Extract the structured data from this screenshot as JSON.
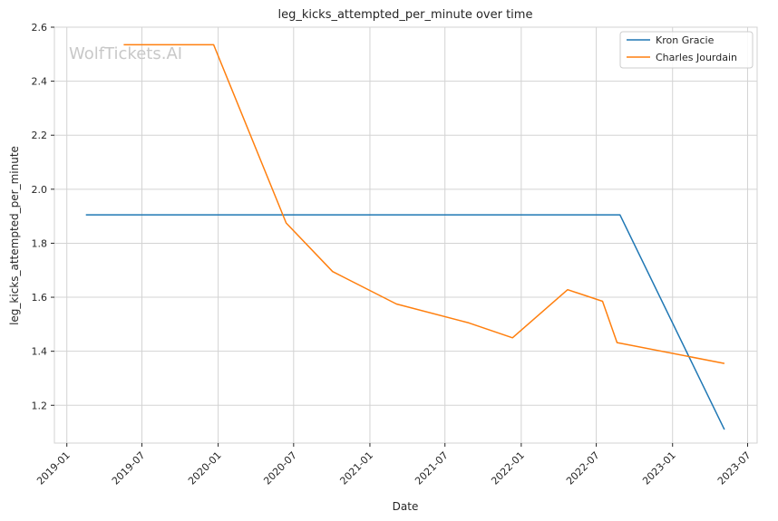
{
  "chart_data": {
    "type": "line",
    "title": "leg_kicks_attempted_per_minute over time",
    "xlabel": "Date",
    "ylabel": "leg_kicks_attempted_per_minute",
    "watermark": "WolfTickets.AI",
    "xlim": [
      "2018-12-02",
      "2023-07-24"
    ],
    "ylim": [
      1.06,
      2.6
    ],
    "x_ticks": [
      "2019-01-01",
      "2019-07-01",
      "2020-01-01",
      "2020-07-01",
      "2021-01-01",
      "2021-07-01",
      "2022-01-01",
      "2022-07-01",
      "2023-01-01",
      "2023-07-01"
    ],
    "x_tick_labels": [
      "2019-01",
      "2019-07",
      "2020-01",
      "2020-07",
      "2021-01",
      "2021-07",
      "2022-01",
      "2022-07",
      "2023-01",
      "2023-07"
    ],
    "y_ticks": [
      1.2,
      1.4,
      1.6,
      1.8,
      2.0,
      2.2,
      2.4,
      2.6
    ],
    "y_tick_labels": [
      "1.2",
      "1.4",
      "1.6",
      "1.8",
      "2.0",
      "2.2",
      "2.4",
      "2.6"
    ],
    "grid": true,
    "legend_position": "top-right",
    "series": [
      {
        "name": "Kron Gracie",
        "color": "#1f77b4",
        "x": [
          "2019-02-16",
          "2022-08-27",
          "2023-05-06"
        ],
        "y": [
          1.905,
          1.905,
          1.11
        ]
      },
      {
        "name": "Charles Jourdain",
        "color": "#ff7f0e",
        "x": [
          "2019-05-18",
          "2019-12-21",
          "2020-06-13",
          "2020-10-03",
          "2021-03-06",
          "2021-08-28",
          "2021-12-11",
          "2022-04-23",
          "2022-07-16",
          "2022-08-20",
          "2023-05-06"
        ],
        "y": [
          2.535,
          2.535,
          1.875,
          1.695,
          1.575,
          1.505,
          1.45,
          1.628,
          1.585,
          1.432,
          1.355
        ]
      }
    ]
  }
}
